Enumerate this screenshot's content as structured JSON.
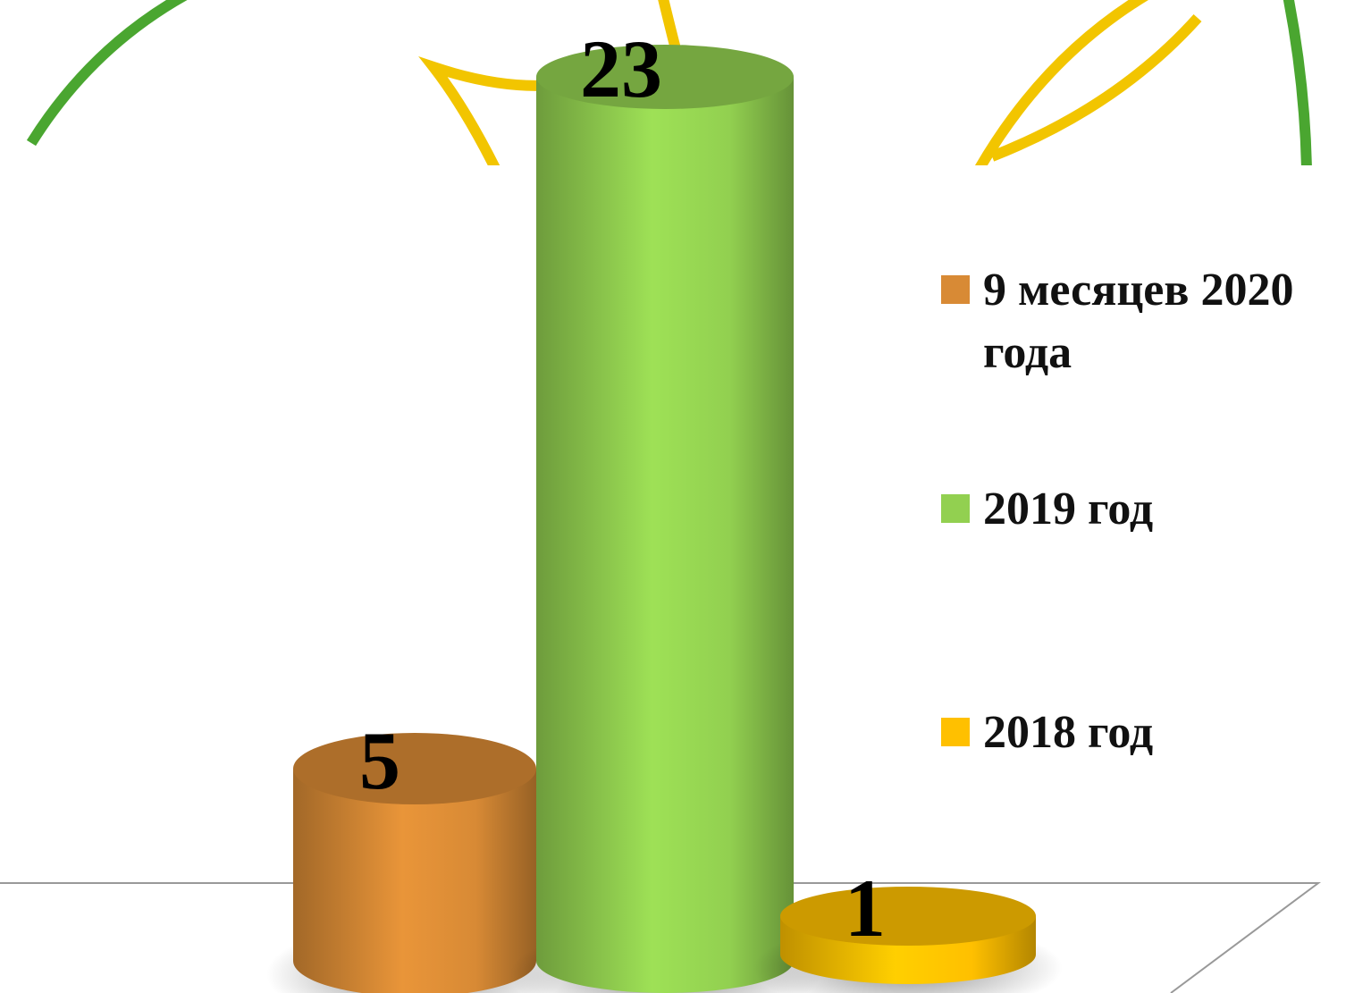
{
  "chart_data": {
    "type": "bar",
    "series": [
      {
        "name": "9 месяцев 2020 года",
        "color": "#d88a35",
        "values": [
          5
        ]
      },
      {
        "name": "2019 год",
        "color": "#92d050",
        "values": [
          23
        ]
      },
      {
        "name": "2018 год",
        "color": "#ffc000",
        "values": [
          1
        ]
      }
    ]
  }
}
